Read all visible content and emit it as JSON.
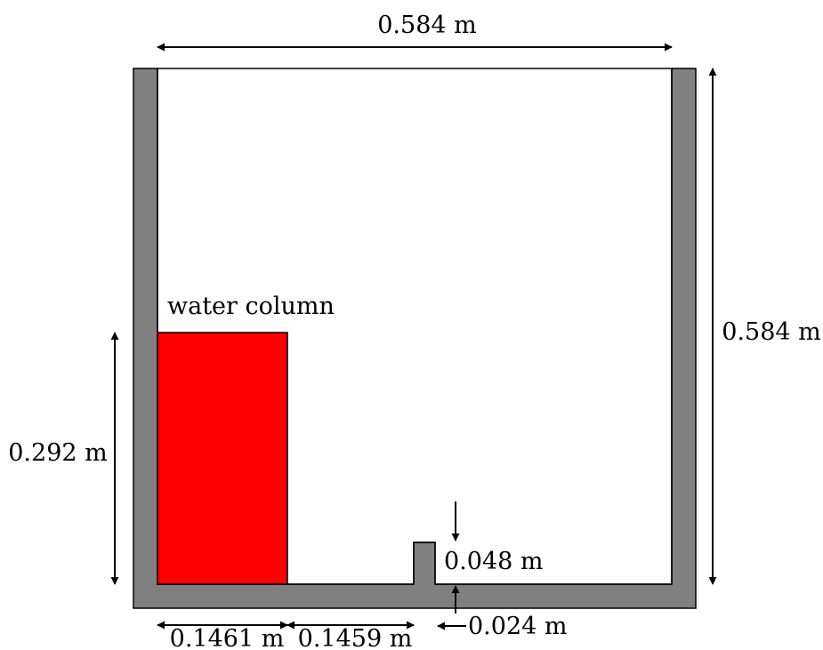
{
  "colors": {
    "wall": "#808080",
    "water": "#ff0000",
    "line": "#000000",
    "background": "#ffffff"
  },
  "labels": {
    "tank_width": "0.584 m",
    "tank_height": "0.584 m",
    "water_column": "water column",
    "water_height": "0.292 m",
    "water_width": "0.1461 m",
    "gap_to_obstacle": "0.1459 m",
    "obstacle_height": "0.048 m",
    "obstacle_width": "0.024 m"
  }
}
